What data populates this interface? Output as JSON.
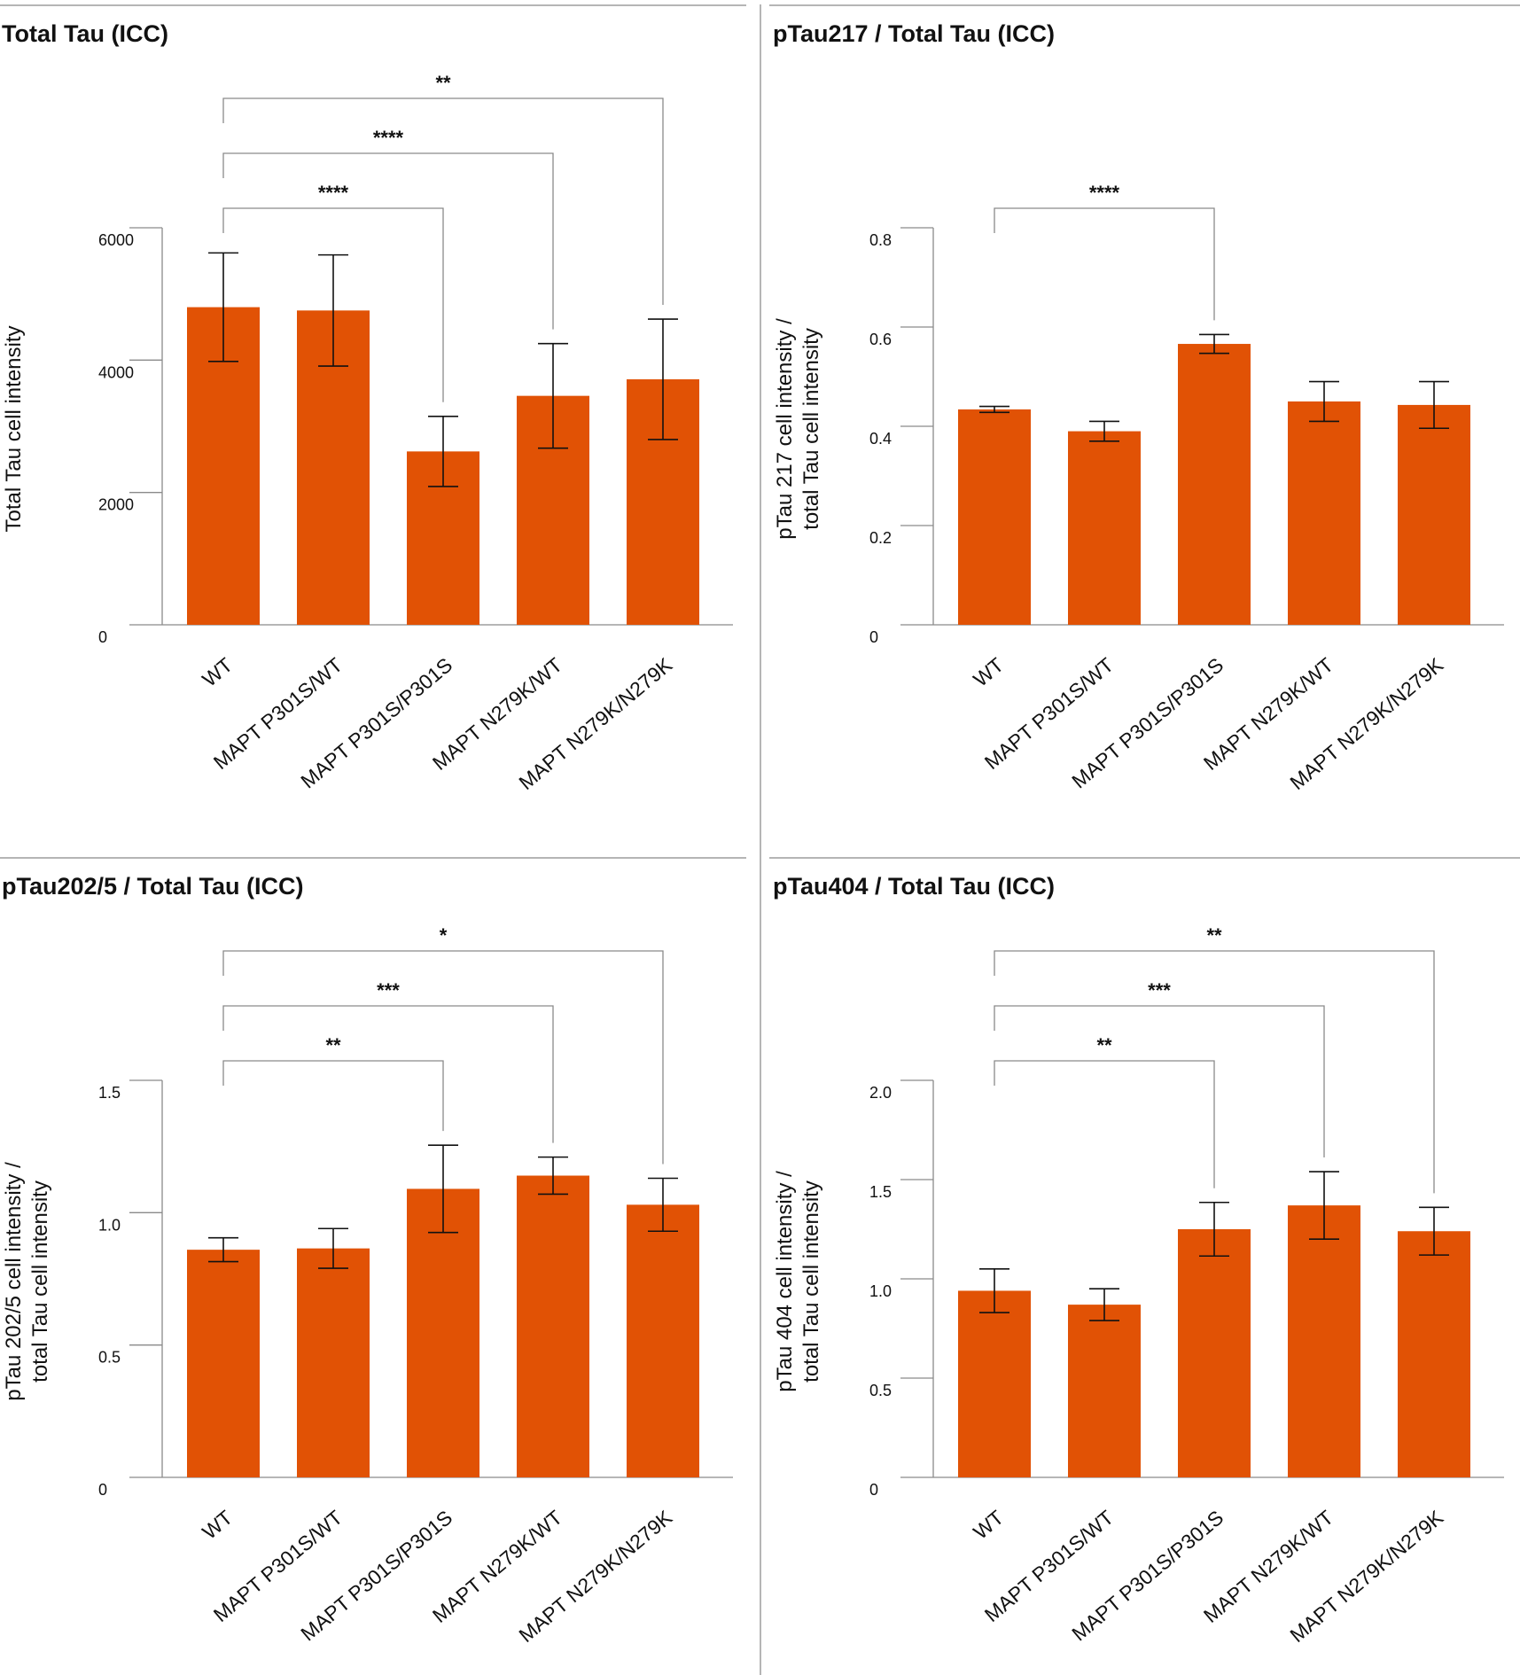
{
  "colors": {
    "bar": "#e15205",
    "axis": "#8a8a8a",
    "bracket": "#8a8a8a",
    "errorbar": "#111111",
    "divider": "#b5b5b5"
  },
  "chart_data": [
    {
      "type": "bar",
      "title": "Total Tau (ICC)",
      "ylabel": "Total Tau cell intensity",
      "categories": [
        "WT",
        "MAPT P301S/WT",
        "MAPT P301S/P301S",
        "MAPT N279K/WT",
        "MAPT N279K/N279K"
      ],
      "values": [
        4800,
        4750,
        2620,
        3460,
        3710
      ],
      "errors": [
        820,
        840,
        530,
        790,
        910
      ],
      "ylim": [
        0,
        6000
      ],
      "yticks": [
        0,
        2000,
        4000,
        6000
      ],
      "yticklabels": [
        "0",
        "2000",
        "4000",
        "6000"
      ],
      "significance": [
        {
          "from": 0,
          "to": 2,
          "label": "****"
        },
        {
          "from": 0,
          "to": 3,
          "label": "****"
        },
        {
          "from": 0,
          "to": 4,
          "label": "**"
        }
      ]
    },
    {
      "type": "bar",
      "title": "pTau217 / Total Tau (ICC)",
      "ylabel": [
        "pTau 217 cell intensity /",
        "total Tau cell intensity"
      ],
      "categories": [
        "WT",
        "MAPT P301S/WT",
        "MAPT P301S/P301S",
        "MAPT N279K/WT",
        "MAPT N279K/N279K"
      ],
      "values": [
        0.434,
        0.39,
        0.566,
        0.45,
        0.443
      ],
      "errors": [
        0.006,
        0.02,
        0.019,
        0.04,
        0.047
      ],
      "ylim": [
        0,
        0.8
      ],
      "yticks": [
        0,
        0.2,
        0.4,
        0.6,
        0.8
      ],
      "yticklabels": [
        "0",
        "0.2",
        "0.4",
        "0.6",
        "0.8"
      ],
      "significance": [
        {
          "from": 0,
          "to": 2,
          "label": "****"
        }
      ]
    },
    {
      "type": "bar",
      "title": "pTau202/5 / Total Tau (ICC)",
      "ylabel": [
        "pTau 202/5 cell intensity /",
        "total Tau cell intensity"
      ],
      "categories": [
        "WT",
        "MAPT P301S/WT",
        "MAPT P301S/P301S",
        "MAPT N279K/WT",
        "MAPT N279K/N279K"
      ],
      "values": [
        0.86,
        0.865,
        1.09,
        1.14,
        1.03
      ],
      "errors": [
        0.045,
        0.075,
        0.165,
        0.07,
        0.1
      ],
      "ylim": [
        0,
        1.5
      ],
      "yticks": [
        0,
        0.5,
        1.0,
        1.5
      ],
      "yticklabels": [
        "0",
        "0.5",
        "1.0",
        "1.5"
      ],
      "significance": [
        {
          "from": 0,
          "to": 2,
          "label": "**"
        },
        {
          "from": 0,
          "to": 3,
          "label": "***"
        },
        {
          "from": 0,
          "to": 4,
          "label": "*"
        }
      ]
    },
    {
      "type": "bar",
      "title": "pTau404 / Total Tau (ICC)",
      "ylabel": [
        "pTau 404 cell intensity /",
        "total Tau cell intensity"
      ],
      "categories": [
        "WT",
        "MAPT P301S/WT",
        "MAPT P301S/P301S",
        "MAPT N279K/WT",
        "MAPT N279K/N279K"
      ],
      "values": [
        0.94,
        0.87,
        1.25,
        1.37,
        1.24
      ],
      "errors": [
        0.11,
        0.08,
        0.135,
        0.17,
        0.12
      ],
      "ylim": [
        0,
        2.0
      ],
      "yticks": [
        0,
        0.5,
        1.0,
        1.5,
        2.0
      ],
      "yticklabels": [
        "0",
        "0.5",
        "1.0",
        "1.5",
        "2.0"
      ],
      "significance": [
        {
          "from": 0,
          "to": 2,
          "label": "**"
        },
        {
          "from": 0,
          "to": 3,
          "label": "***"
        },
        {
          "from": 0,
          "to": 4,
          "label": "**"
        }
      ]
    }
  ]
}
